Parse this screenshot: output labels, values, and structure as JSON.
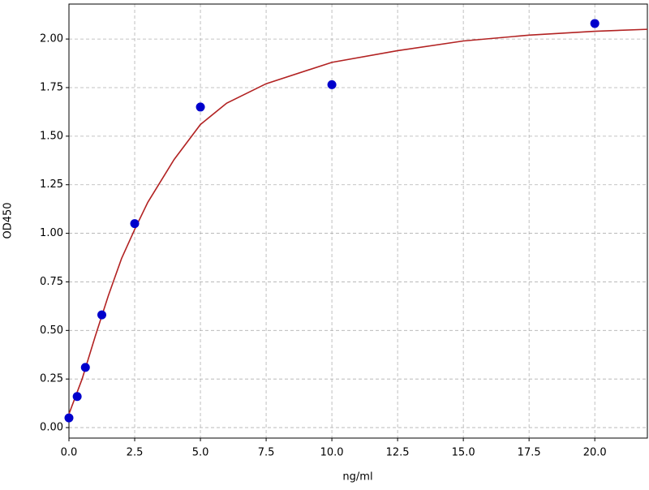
{
  "chart_data": {
    "type": "scatter",
    "xlabel": "ng/ml",
    "ylabel": "OD450",
    "xlim": [
      0,
      22
    ],
    "ylim": [
      -0.054,
      2.18
    ],
    "xticks": [
      {
        "value": 0,
        "label": "0.0"
      },
      {
        "value": 2.5,
        "label": "2.5"
      },
      {
        "value": 5,
        "label": "5.0"
      },
      {
        "value": 7.5,
        "label": "7.5"
      },
      {
        "value": 10,
        "label": "10.0"
      },
      {
        "value": 12.5,
        "label": "12.5"
      },
      {
        "value": 15,
        "label": "15.0"
      },
      {
        "value": 17.5,
        "label": "17.5"
      },
      {
        "value": 20,
        "label": "20.0"
      }
    ],
    "yticks": [
      {
        "value": 0,
        "label": "0.00"
      },
      {
        "value": 0.25,
        "label": "0.25"
      },
      {
        "value": 0.5,
        "label": "0.50"
      },
      {
        "value": 0.75,
        "label": "0.75"
      },
      {
        "value": 1,
        "label": "1.00"
      },
      {
        "value": 1.25,
        "label": "1.25"
      },
      {
        "value": 1.5,
        "label": "1.50"
      },
      {
        "value": 1.75,
        "label": "1.75"
      },
      {
        "value": 2,
        "label": "2.00"
      }
    ],
    "grid": true,
    "series": [
      {
        "type": "line",
        "color": "#b22222",
        "x": [
          0,
          0.5,
          1,
          1.5,
          2,
          2.5,
          3,
          4,
          5,
          6,
          7.5,
          10,
          12.5,
          15,
          17.5,
          20,
          22
        ],
        "values": [
          0.07,
          0.25,
          0.47,
          0.68,
          0.87,
          1.02,
          1.16,
          1.38,
          1.56,
          1.67,
          1.77,
          1.88,
          1.94,
          1.99,
          2.02,
          2.04,
          2.05
        ]
      },
      {
        "type": "scatter",
        "color": "#0000cc",
        "x": [
          0,
          0.3125,
          0.625,
          1.25,
          2.5,
          5,
          10,
          20
        ],
        "values": [
          0.05,
          0.16,
          0.31,
          0.58,
          1.05,
          1.65,
          1.765,
          2.08
        ]
      }
    ]
  }
}
